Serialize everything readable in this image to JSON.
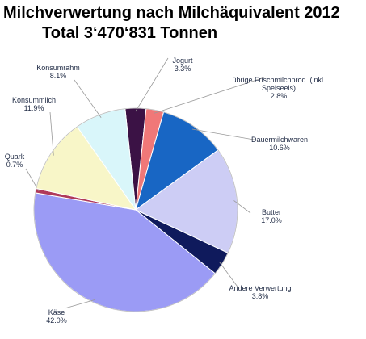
{
  "title": {
    "line1": "Milchverwertung nach Milchäquivalent 2012",
    "line2": "Total 3‘470‘831 Tonnen"
  },
  "chart_data": {
    "type": "pie",
    "title": "Milchverwertung nach Milchäquivalent 2012",
    "subtitle": "Total 3‘470‘831 Tonnen",
    "slices": [
      {
        "name": "Jogurt",
        "value": 3.3,
        "label_pct": "3.3%",
        "color": "#3b1245"
      },
      {
        "name": "übrige Frischmilchprod. (inkl. Speiseeis)",
        "label_lines": [
          "übrige Frischmilchprod. (inkl.",
          "Speiseeis)"
        ],
        "value": 2.8,
        "label_pct": "2.8%",
        "color": "#f07878"
      },
      {
        "name": "Dauermilchwaren",
        "value": 10.6,
        "label_pct": "10.6%",
        "color": "#1866c4"
      },
      {
        "name": "Butter",
        "value": 17.0,
        "label_pct": "17.0%",
        "color": "#cdcdf5"
      },
      {
        "name": "Andere Verwertung",
        "value": 3.8,
        "label_pct": "3.8%",
        "color": "#0f1a5c"
      },
      {
        "name": "Käse",
        "value": 42.0,
        "label_pct": "42.0%",
        "color": "#9b9bf5"
      },
      {
        "name": "Quark",
        "value": 0.7,
        "label_pct": "0.7%",
        "color": "#b03a5a"
      },
      {
        "name": "Konsummilch",
        "value": 11.9,
        "label_pct": "11.9%",
        "color": "#f8f6c8"
      },
      {
        "name": "Konsumrahm",
        "value": 8.1,
        "label_pct": "8.1%",
        "color": "#d9f6fa"
      }
    ]
  }
}
